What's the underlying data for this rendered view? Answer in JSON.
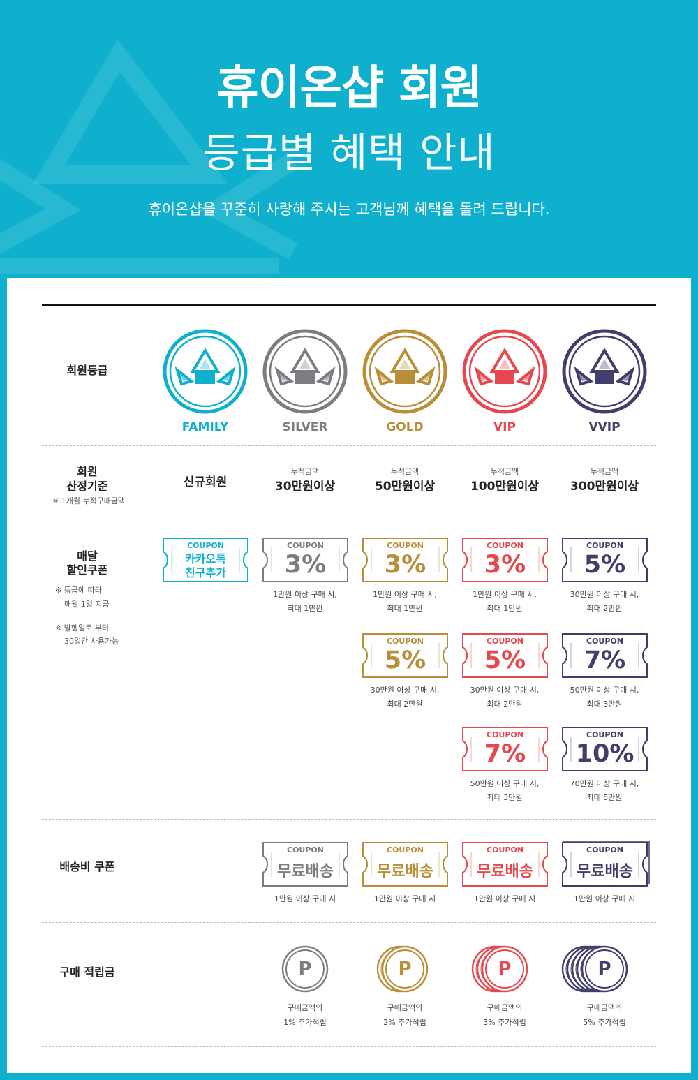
{
  "hero": {
    "title": "휴이온샵 회원",
    "subtitle": "등급별 혜택 안내",
    "description": "휴이온샵을 꾸준히 사랑해 주시는 고객님께 혜택을 돌려 드립니다."
  },
  "colors": {
    "background": "#0fb0cd",
    "family": "#0fb0cd",
    "silver": "#7c7c82",
    "gold": "#b98e38",
    "vip": "#e5494f",
    "vvip": "#413e6b"
  },
  "rows": {
    "grade": {
      "label": "회원등급"
    },
    "criteria": {
      "label_line1": "회원",
      "label_line2": "산정기준",
      "note": "※ 1개월 누적구매금액"
    },
    "coupon": {
      "label_line1": "매달",
      "label_line2": "할인쿠폰",
      "note1_line1": "※ 등급에 따라",
      "note1_line2": "매월 1일 지급",
      "note2_line1": "※ 발행일로 부터",
      "note2_line2": "30일간 사용가능"
    },
    "shipping": {
      "label": "배송비 쿠폰"
    },
    "points": {
      "label": "구매 적립금"
    }
  },
  "grades": [
    {
      "name": "FAMILY",
      "color": "#0fb0cd",
      "criteria_small": "",
      "criteria_big": "신규회원"
    },
    {
      "name": "SILVER",
      "color": "#7c7c82",
      "criteria_small": "누적금액",
      "criteria_big": "30만원이상"
    },
    {
      "name": "GOLD",
      "color": "#b98e38",
      "criteria_small": "누적금액",
      "criteria_big": "50만원이상"
    },
    {
      "name": "VIP",
      "color": "#e5494f",
      "criteria_small": "누적금액",
      "criteria_big": "100만원이상"
    },
    {
      "name": "VVIP",
      "color": "#413e6b",
      "criteria_small": "누적금액",
      "criteria_big": "300만원이상"
    }
  ],
  "coupon_word": "COUPON",
  "kakao_coupon": {
    "line1": "카카오톡",
    "line2": "친구추가"
  },
  "discount_coupons": [
    {
      "grade": 1,
      "slot": 0,
      "value": "3%",
      "desc1": "1만원 이상 구매 시,",
      "desc2": "최대 1만원"
    },
    {
      "grade": 2,
      "slot": 0,
      "value": "3%",
      "desc1": "1만원 이상 구매 시,",
      "desc2": "최대 1만원"
    },
    {
      "grade": 3,
      "slot": 0,
      "value": "3%",
      "desc1": "1만원 이상 구매 시,",
      "desc2": "최대 1만원"
    },
    {
      "grade": 4,
      "slot": 0,
      "value": "5%",
      "desc1": "30만원 이상 구매 시,",
      "desc2": "최대 2만원"
    },
    {
      "grade": 2,
      "slot": 1,
      "value": "5%",
      "desc1": "30만원 이상 구매 시,",
      "desc2": "최대 2만원"
    },
    {
      "grade": 3,
      "slot": 1,
      "value": "5%",
      "desc1": "30만원 이상 구매 시,",
      "desc2": "최대 2만원"
    },
    {
      "grade": 4,
      "slot": 1,
      "value": "7%",
      "desc1": "50만원 이상 구매 시,",
      "desc2": "최대 3만원"
    },
    {
      "grade": 3,
      "slot": 2,
      "value": "7%",
      "desc1": "50만원 이상 구매 시,",
      "desc2": "최대 3만원"
    },
    {
      "grade": 4,
      "slot": 2,
      "value": "10%",
      "desc1": "70만원 이상 구매 시,",
      "desc2": "최대 5만원"
    }
  ],
  "shipping_coupons": [
    {
      "grade": 1,
      "value": "무료배송",
      "desc": "1만원 이상 구매 시"
    },
    {
      "grade": 2,
      "value": "무료배송",
      "desc": "1만원 이상 구매 시"
    },
    {
      "grade": 3,
      "value": "무료배송",
      "desc": "1만원 이상 구매 시"
    },
    {
      "grade": 4,
      "value": "무료배송",
      "desc": "1만원 이상 구매 시"
    }
  ],
  "points": [
    {
      "grade": 1,
      "coins": 1,
      "desc1": "구매금액의",
      "desc2": "1% 추가적립"
    },
    {
      "grade": 2,
      "coins": 2,
      "desc1": "구매금액의",
      "desc2": "2% 추가적립"
    },
    {
      "grade": 3,
      "coins": 3,
      "desc1": "구매금액의",
      "desc2": "3% 추가적립"
    },
    {
      "grade": 4,
      "coins": 5,
      "desc1": "구매금액의",
      "desc2": "5% 추가적립"
    }
  ],
  "point_symbol": "P"
}
